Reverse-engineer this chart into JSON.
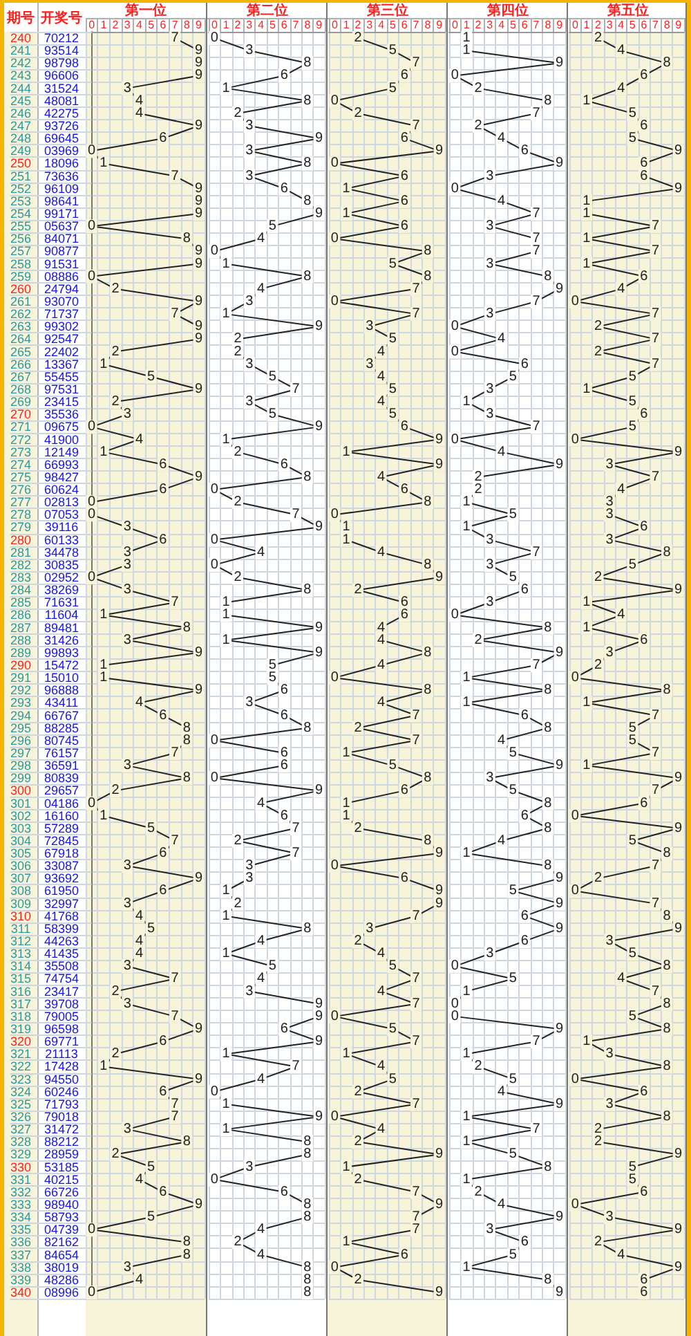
{
  "chart_data": [
    {
      "type": "other",
      "title": "开奖号",
      "annotations": [
        "70212",
        "93514",
        "98798",
        "96606",
        "31524",
        "48081",
        "42275",
        "93726",
        "69645",
        "03969",
        "18096",
        "73636",
        "96109",
        "98641",
        "99171",
        "05637",
        "84071",
        "90877",
        "91531",
        "08886",
        "24794",
        "93070",
        "71737",
        "99302",
        "92547",
        "22402",
        "13367",
        "55455",
        "97531",
        "23415",
        "35536",
        "09675",
        "41900",
        "12149",
        "66993",
        "98427",
        "60624",
        "02813",
        "07053",
        "39116",
        "60133",
        "34478",
        "30835",
        "02952",
        "38269",
        "71631",
        "11604",
        "89481",
        "31426",
        "99893",
        "15472",
        "15010",
        "96888",
        "43411",
        "66767",
        "88285",
        "80745",
        "76157",
        "36591",
        "80839",
        "29657",
        "04186",
        "16160",
        "57289",
        "72845",
        "67918",
        "33087",
        "93692",
        "61950",
        "32997",
        "41768",
        "58399",
        "44263",
        "41435",
        "35508",
        "74754",
        "23417",
        "39708",
        "79005",
        "96598",
        "69771",
        "21113",
        "17428",
        "94550",
        "60246",
        "71793",
        "79018",
        "31472",
        "88212",
        "28959",
        "53185",
        "40215",
        "66726",
        "98940",
        "58793",
        "04739",
        "82162",
        "84654",
        "38019",
        "48286",
        "08996"
      ]
    },
    {
      "type": "line",
      "title": "第一位",
      "ylabel": "期号",
      "orientation": "horizontal",
      "color": "#222222",
      "xlim": [
        -0.5,
        9.5
      ],
      "xticks": [
        0,
        1,
        2,
        3,
        4,
        5,
        6,
        7,
        8,
        9
      ],
      "grid": true,
      "marker": "square",
      "data_labels": true,
      "categories": [
        "240",
        "241",
        "242",
        "243",
        "244",
        "245",
        "246",
        "247",
        "248",
        "249",
        "250",
        "251",
        "252",
        "253",
        "254",
        "255",
        "256",
        "257",
        "258",
        "259",
        "260",
        "261",
        "262",
        "263",
        "264",
        "265",
        "266",
        "267",
        "268",
        "269",
        "270",
        "271",
        "272",
        "273",
        "274",
        "275",
        "276",
        "277",
        "278",
        "279",
        "280",
        "281",
        "282",
        "283",
        "284",
        "285",
        "286",
        "287",
        "288",
        "289",
        "290",
        "291",
        "292",
        "293",
        "294",
        "295",
        "296",
        "297",
        "298",
        "299",
        "300",
        "301",
        "302",
        "303",
        "304",
        "305",
        "306",
        "307",
        "308",
        "309",
        "310",
        "311",
        "312",
        "313",
        "314",
        "315",
        "316",
        "317",
        "318",
        "319",
        "320",
        "321",
        "322",
        "323",
        "324",
        "325",
        "326",
        "327",
        "328",
        "329",
        "330",
        "331",
        "332",
        "333",
        "334",
        "335",
        "336",
        "337",
        "338",
        "339",
        "340"
      ],
      "values": [
        7,
        9,
        9,
        9,
        3,
        4,
        4,
        9,
        6,
        0,
        1,
        7,
        9,
        9,
        9,
        0,
        8,
        9,
        9,
        0,
        2,
        9,
        7,
        9,
        9,
        2,
        1,
        5,
        9,
        2,
        3,
        0,
        4,
        1,
        6,
        9,
        6,
        0,
        0,
        3,
        6,
        3,
        3,
        0,
        3,
        7,
        1,
        8,
        3,
        9,
        1,
        1,
        9,
        4,
        6,
        8,
        8,
        7,
        3,
        8,
        2,
        0,
        1,
        5,
        7,
        6,
        3,
        9,
        6,
        3,
        4,
        5,
        4,
        4,
        3,
        7,
        2,
        3,
        7,
        9,
        6,
        2,
        1,
        9,
        6,
        7,
        7,
        3,
        8,
        2,
        5,
        4,
        6,
        9,
        5,
        0,
        8,
        8,
        3,
        4,
        0
      ]
    },
    {
      "type": "line",
      "title": "第二位",
      "orientation": "horizontal",
      "color": "#222222",
      "xlim": [
        -0.5,
        9.5
      ],
      "xticks": [
        0,
        1,
        2,
        3,
        4,
        5,
        6,
        7,
        8,
        9
      ],
      "grid": true,
      "marker": "square",
      "data_labels": true,
      "tick_labels": "x",
      "categories": [
        "240",
        "241",
        "242",
        "243",
        "244",
        "245",
        "246",
        "247",
        "248",
        "249",
        "250",
        "251",
        "252",
        "253",
        "254",
        "255",
        "256",
        "257",
        "258",
        "259",
        "260",
        "261",
        "262",
        "263",
        "264",
        "265",
        "266",
        "267",
        "268",
        "269",
        "270",
        "271",
        "272",
        "273",
        "274",
        "275",
        "276",
        "277",
        "278",
        "279",
        "280",
        "281",
        "282",
        "283",
        "284",
        "285",
        "286",
        "287",
        "288",
        "289",
        "290",
        "291",
        "292",
        "293",
        "294",
        "295",
        "296",
        "297",
        "298",
        "299",
        "300",
        "301",
        "302",
        "303",
        "304",
        "305",
        "306",
        "307",
        "308",
        "309",
        "310",
        "311",
        "312",
        "313",
        "314",
        "315",
        "316",
        "317",
        "318",
        "319",
        "320",
        "321",
        "322",
        "323",
        "324",
        "325",
        "326",
        "327",
        "328",
        "329",
        "330",
        "331",
        "332",
        "333",
        "334",
        "335",
        "336",
        "337",
        "338",
        "339",
        "340"
      ],
      "values": [
        0,
        3,
        8,
        6,
        1,
        8,
        2,
        3,
        9,
        3,
        8,
        3,
        6,
        8,
        9,
        5,
        4,
        0,
        1,
        8,
        4,
        3,
        1,
        9,
        2,
        2,
        3,
        5,
        7,
        3,
        5,
        9,
        1,
        2,
        6,
        8,
        0,
        2,
        7,
        9,
        0,
        4,
        0,
        2,
        8,
        1,
        1,
        9,
        1,
        9,
        5,
        5,
        6,
        3,
        6,
        8,
        0,
        6,
        6,
        0,
        9,
        4,
        6,
        7,
        2,
        7,
        3,
        3,
        1,
        2,
        1,
        8,
        4,
        1,
        5,
        4,
        3,
        9,
        9,
        6,
        9,
        1,
        7,
        4,
        0,
        1,
        9,
        1,
        8,
        8,
        3,
        0,
        6,
        8,
        8,
        4,
        2,
        4,
        8,
        8,
        8
      ]
    },
    {
      "type": "line",
      "title": "第三位",
      "orientation": "horizontal",
      "color": "#222222",
      "xlim": [
        -0.5,
        9.5
      ],
      "xticks": [
        0,
        1,
        2,
        3,
        4,
        5,
        6,
        7,
        8,
        9
      ],
      "grid": true,
      "marker": "square",
      "data_labels": true,
      "tick_labels": "x",
      "categories": [
        "240",
        "241",
        "242",
        "243",
        "244",
        "245",
        "246",
        "247",
        "248",
        "249",
        "250",
        "251",
        "252",
        "253",
        "254",
        "255",
        "256",
        "257",
        "258",
        "259",
        "260",
        "261",
        "262",
        "263",
        "264",
        "265",
        "266",
        "267",
        "268",
        "269",
        "270",
        "271",
        "272",
        "273",
        "274",
        "275",
        "276",
        "277",
        "278",
        "279",
        "280",
        "281",
        "282",
        "283",
        "284",
        "285",
        "286",
        "287",
        "288",
        "289",
        "290",
        "291",
        "292",
        "293",
        "294",
        "295",
        "296",
        "297",
        "298",
        "299",
        "300",
        "301",
        "302",
        "303",
        "304",
        "305",
        "306",
        "307",
        "308",
        "309",
        "310",
        "311",
        "312",
        "313",
        "314",
        "315",
        "316",
        "317",
        "318",
        "319",
        "320",
        "321",
        "322",
        "323",
        "324",
        "325",
        "326",
        "327",
        "328",
        "329",
        "330",
        "331",
        "332",
        "333",
        "334",
        "335",
        "336",
        "337",
        "338",
        "339",
        "340"
      ],
      "values": [
        2,
        5,
        7,
        6,
        5,
        0,
        2,
        7,
        6,
        9,
        0,
        6,
        1,
        6,
        1,
        6,
        0,
        8,
        5,
        8,
        7,
        0,
        7,
        3,
        5,
        4,
        3,
        4,
        5,
        4,
        5,
        6,
        9,
        1,
        9,
        4,
        6,
        8,
        0,
        1,
        1,
        4,
        8,
        9,
        2,
        6,
        6,
        4,
        4,
        8,
        4,
        0,
        8,
        4,
        7,
        2,
        7,
        1,
        5,
        8,
        6,
        1,
        1,
        2,
        8,
        9,
        0,
        6,
        9,
        9,
        7,
        3,
        2,
        4,
        5,
        7,
        4,
        7,
        0,
        5,
        7,
        1,
        4,
        5,
        2,
        7,
        0,
        4,
        2,
        9,
        1,
        2,
        7,
        9,
        7,
        7,
        1,
        6,
        0,
        2,
        9
      ]
    },
    {
      "type": "line",
      "title": "第四位",
      "orientation": "horizontal",
      "color": "#222222",
      "xlim": [
        -0.5,
        9.5
      ],
      "xticks": [
        0,
        1,
        2,
        3,
        4,
        5,
        6,
        7,
        8,
        9
      ],
      "grid": true,
      "marker": "square",
      "data_labels": true,
      "tick_labels": "x",
      "categories": [
        "240",
        "241",
        "242",
        "243",
        "244",
        "245",
        "246",
        "247",
        "248",
        "249",
        "250",
        "251",
        "252",
        "253",
        "254",
        "255",
        "256",
        "257",
        "258",
        "259",
        "260",
        "261",
        "262",
        "263",
        "264",
        "265",
        "266",
        "267",
        "268",
        "269",
        "270",
        "271",
        "272",
        "273",
        "274",
        "275",
        "276",
        "277",
        "278",
        "279",
        "280",
        "281",
        "282",
        "283",
        "284",
        "285",
        "286",
        "287",
        "288",
        "289",
        "290",
        "291",
        "292",
        "293",
        "294",
        "295",
        "296",
        "297",
        "298",
        "299",
        "300",
        "301",
        "302",
        "303",
        "304",
        "305",
        "306",
        "307",
        "308",
        "309",
        "310",
        "311",
        "312",
        "313",
        "314",
        "315",
        "316",
        "317",
        "318",
        "319",
        "320",
        "321",
        "322",
        "323",
        "324",
        "325",
        "326",
        "327",
        "328",
        "329",
        "330",
        "331",
        "332",
        "333",
        "334",
        "335",
        "336",
        "337",
        "338",
        "339",
        "340"
      ],
      "values": [
        1,
        1,
        9,
        0,
        2,
        8,
        7,
        2,
        4,
        6,
        9,
        3,
        0,
        4,
        7,
        3,
        7,
        7,
        3,
        8,
        9,
        7,
        3,
        0,
        4,
        0,
        6,
        5,
        3,
        1,
        3,
        7,
        0,
        4,
        9,
        2,
        2,
        1,
        5,
        1,
        3,
        7,
        3,
        5,
        6,
        3,
        0,
        8,
        2,
        9,
        7,
        1,
        8,
        1,
        6,
        8,
        4,
        5,
        9,
        3,
        5,
        8,
        6,
        8,
        4,
        1,
        8,
        9,
        5,
        9,
        6,
        9,
        6,
        3,
        0,
        5,
        1,
        0,
        0,
        9,
        7,
        1,
        2,
        5,
        4,
        9,
        1,
        7,
        1,
        5,
        8,
        1,
        2,
        4,
        9,
        3,
        6,
        5,
        1,
        8,
        9
      ]
    },
    {
      "type": "line",
      "title": "第五位",
      "orientation": "horizontal",
      "color": "#222222",
      "xlim": [
        -0.5,
        9.5
      ],
      "xticks": [
        0,
        1,
        2,
        3,
        4,
        5,
        6,
        7,
        8,
        9
      ],
      "grid": true,
      "marker": "square",
      "data_labels": true,
      "tick_labels": "x",
      "categories": [
        "240",
        "241",
        "242",
        "243",
        "244",
        "245",
        "246",
        "247",
        "248",
        "249",
        "250",
        "251",
        "252",
        "253",
        "254",
        "255",
        "256",
        "257",
        "258",
        "259",
        "260",
        "261",
        "262",
        "263",
        "264",
        "265",
        "266",
        "267",
        "268",
        "269",
        "270",
        "271",
        "272",
        "273",
        "274",
        "275",
        "276",
        "277",
        "278",
        "279",
        "280",
        "281",
        "282",
        "283",
        "284",
        "285",
        "286",
        "287",
        "288",
        "289",
        "290",
        "291",
        "292",
        "293",
        "294",
        "295",
        "296",
        "297",
        "298",
        "299",
        "300",
        "301",
        "302",
        "303",
        "304",
        "305",
        "306",
        "307",
        "308",
        "309",
        "310",
        "311",
        "312",
        "313",
        "314",
        "315",
        "316",
        "317",
        "318",
        "319",
        "320",
        "321",
        "322",
        "323",
        "324",
        "325",
        "326",
        "327",
        "328",
        "329",
        "330",
        "331",
        "332",
        "333",
        "334",
        "335",
        "336",
        "337",
        "338",
        "339",
        "340"
      ],
      "values": [
        2,
        4,
        8,
        6,
        4,
        1,
        5,
        6,
        5,
        9,
        6,
        6,
        9,
        1,
        1,
        7,
        1,
        7,
        1,
        6,
        4,
        0,
        7,
        2,
        7,
        2,
        7,
        5,
        1,
        5,
        6,
        5,
        0,
        9,
        3,
        7,
        4,
        3,
        3,
        6,
        3,
        8,
        5,
        2,
        9,
        1,
        4,
        1,
        6,
        3,
        2,
        0,
        8,
        1,
        7,
        5,
        5,
        7,
        1,
        9,
        7,
        6,
        0,
        9,
        5,
        8,
        7,
        2,
        0,
        7,
        8,
        9,
        3,
        5,
        8,
        4,
        7,
        8,
        5,
        8,
        1,
        3,
        8,
        0,
        6,
        3,
        8,
        2,
        2,
        9,
        5,
        5,
        6,
        0,
        3,
        9,
        2,
        4,
        9,
        6,
        6
      ]
    }
  ]
}
